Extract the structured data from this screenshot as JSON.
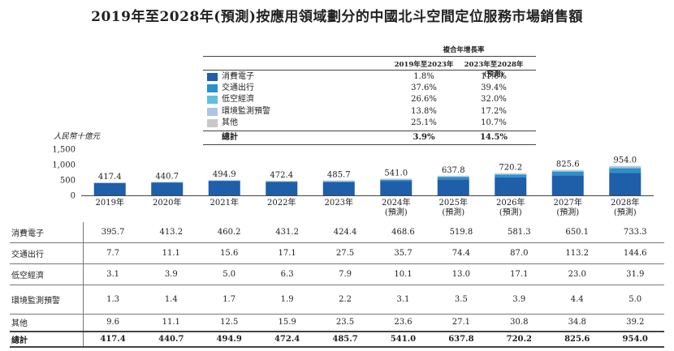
{
  "title": "2019年至2028年(預測)按應用領域劃分的中國北斗空間定位服務市場銷售額",
  "growth_header": {
    "title": "複合年增長率",
    "col1": "2019年至2023年",
    "col2": "2023年至2028年(預測)"
  },
  "legend": [
    {
      "label": "消費電子",
      "cagr1": "1.8%",
      "cagr2": "11.6%",
      "color": "#1f5ea8"
    },
    {
      "label": "交通出行",
      "cagr1": "37.6%",
      "cagr2": "39.4%",
      "color": "#2a8fce"
    },
    {
      "label": "低空經濟",
      "cagr1": "26.6%",
      "cagr2": "32.0%",
      "color": "#5fc0dc"
    },
    {
      "label": "環境監測預警",
      "cagr1": "13.8%",
      "cagr2": "17.2%",
      "color": "#a9c6e6"
    },
    {
      "label": "其他",
      "cagr1": "25.1%",
      "cagr2": "10.7%",
      "color": "#c8c8c8"
    }
  ],
  "legend_total": {
    "label": "總計",
    "cagr1": "3.9%",
    "cagr2": "14.5%"
  },
  "table_total_label": "總計",
  "chart_data": {
    "type": "bar",
    "stacked": true,
    "ylabel": "人民幣十億元",
    "ylim": [
      0,
      1500
    ],
    "yticks": [
      "0",
      "500",
      "1,000",
      "1,500"
    ],
    "categories": [
      "2019年",
      "2020年",
      "2021年",
      "2022年",
      "2023年",
      "2024年",
      "2025年",
      "2026年",
      "2027年",
      "2028年"
    ],
    "category_sublabels": [
      "",
      "",
      "",
      "",
      "",
      "(預測)",
      "(預測)",
      "(預測)",
      "(預測)",
      "(預測)"
    ],
    "series": [
      {
        "name": "消費電子",
        "values": [
          395.7,
          413.2,
          460.2,
          431.2,
          424.4,
          468.6,
          519.8,
          581.3,
          650.1,
          733.3
        ]
      },
      {
        "name": "交通出行",
        "values": [
          7.7,
          11.1,
          15.6,
          17.1,
          27.5,
          35.7,
          74.4,
          87.0,
          113.2,
          144.6
        ]
      },
      {
        "name": "低空經濟",
        "values": [
          3.1,
          3.9,
          5.0,
          6.3,
          7.9,
          10.1,
          13.0,
          17.1,
          23.0,
          31.9
        ]
      },
      {
        "name": "環境監測預警",
        "values": [
          1.3,
          1.4,
          1.7,
          1.9,
          2.2,
          3.1,
          3.5,
          3.9,
          4.4,
          5.0
        ]
      },
      {
        "name": "其他",
        "values": [
          9.6,
          11.1,
          12.5,
          15.9,
          23.5,
          23.6,
          27.1,
          30.8,
          34.8,
          39.2
        ]
      }
    ],
    "totals": [
      417.4,
      440.7,
      494.9,
      472.4,
      485.7,
      541.0,
      637.8,
      720.2,
      825.6,
      954.0
    ],
    "total_labels": [
      "417.4",
      "440.7",
      "494.9",
      "472.4",
      "485.7",
      "541.0",
      "637.8",
      "720.2",
      "825.6",
      "954.0"
    ],
    "table_rows": [
      {
        "label": "消費電子",
        "cells": [
          "395.7",
          "413.2",
          "460.2",
          "431.2",
          "424.4",
          "468.6",
          "519.8",
          "581.3",
          "650.1",
          "733.3"
        ]
      },
      {
        "label": "交通出行",
        "cells": [
          "7.7",
          "11.1",
          "15.6",
          "17.1",
          "27.5",
          "35.7",
          "74.4",
          "87.0",
          "113.2",
          "144.6"
        ]
      },
      {
        "label": "低空經濟",
        "cells": [
          "3.1",
          "3.9",
          "5.0",
          "6.3",
          "7.9",
          "10.1",
          "13.0",
          "17.1",
          "23.0",
          "31.9"
        ]
      },
      {
        "label": "環境監測預警",
        "cells": [
          "1.3",
          "1.4",
          "1.7",
          "1.9",
          "2.2",
          "3.1",
          "3.5",
          "3.9",
          "4.4",
          "5.0"
        ]
      },
      {
        "label": "其他",
        "cells": [
          "9.6",
          "11.1",
          "12.5",
          "15.9",
          "23.5",
          "23.6",
          "27.1",
          "30.8",
          "34.8",
          "39.2"
        ]
      }
    ]
  }
}
